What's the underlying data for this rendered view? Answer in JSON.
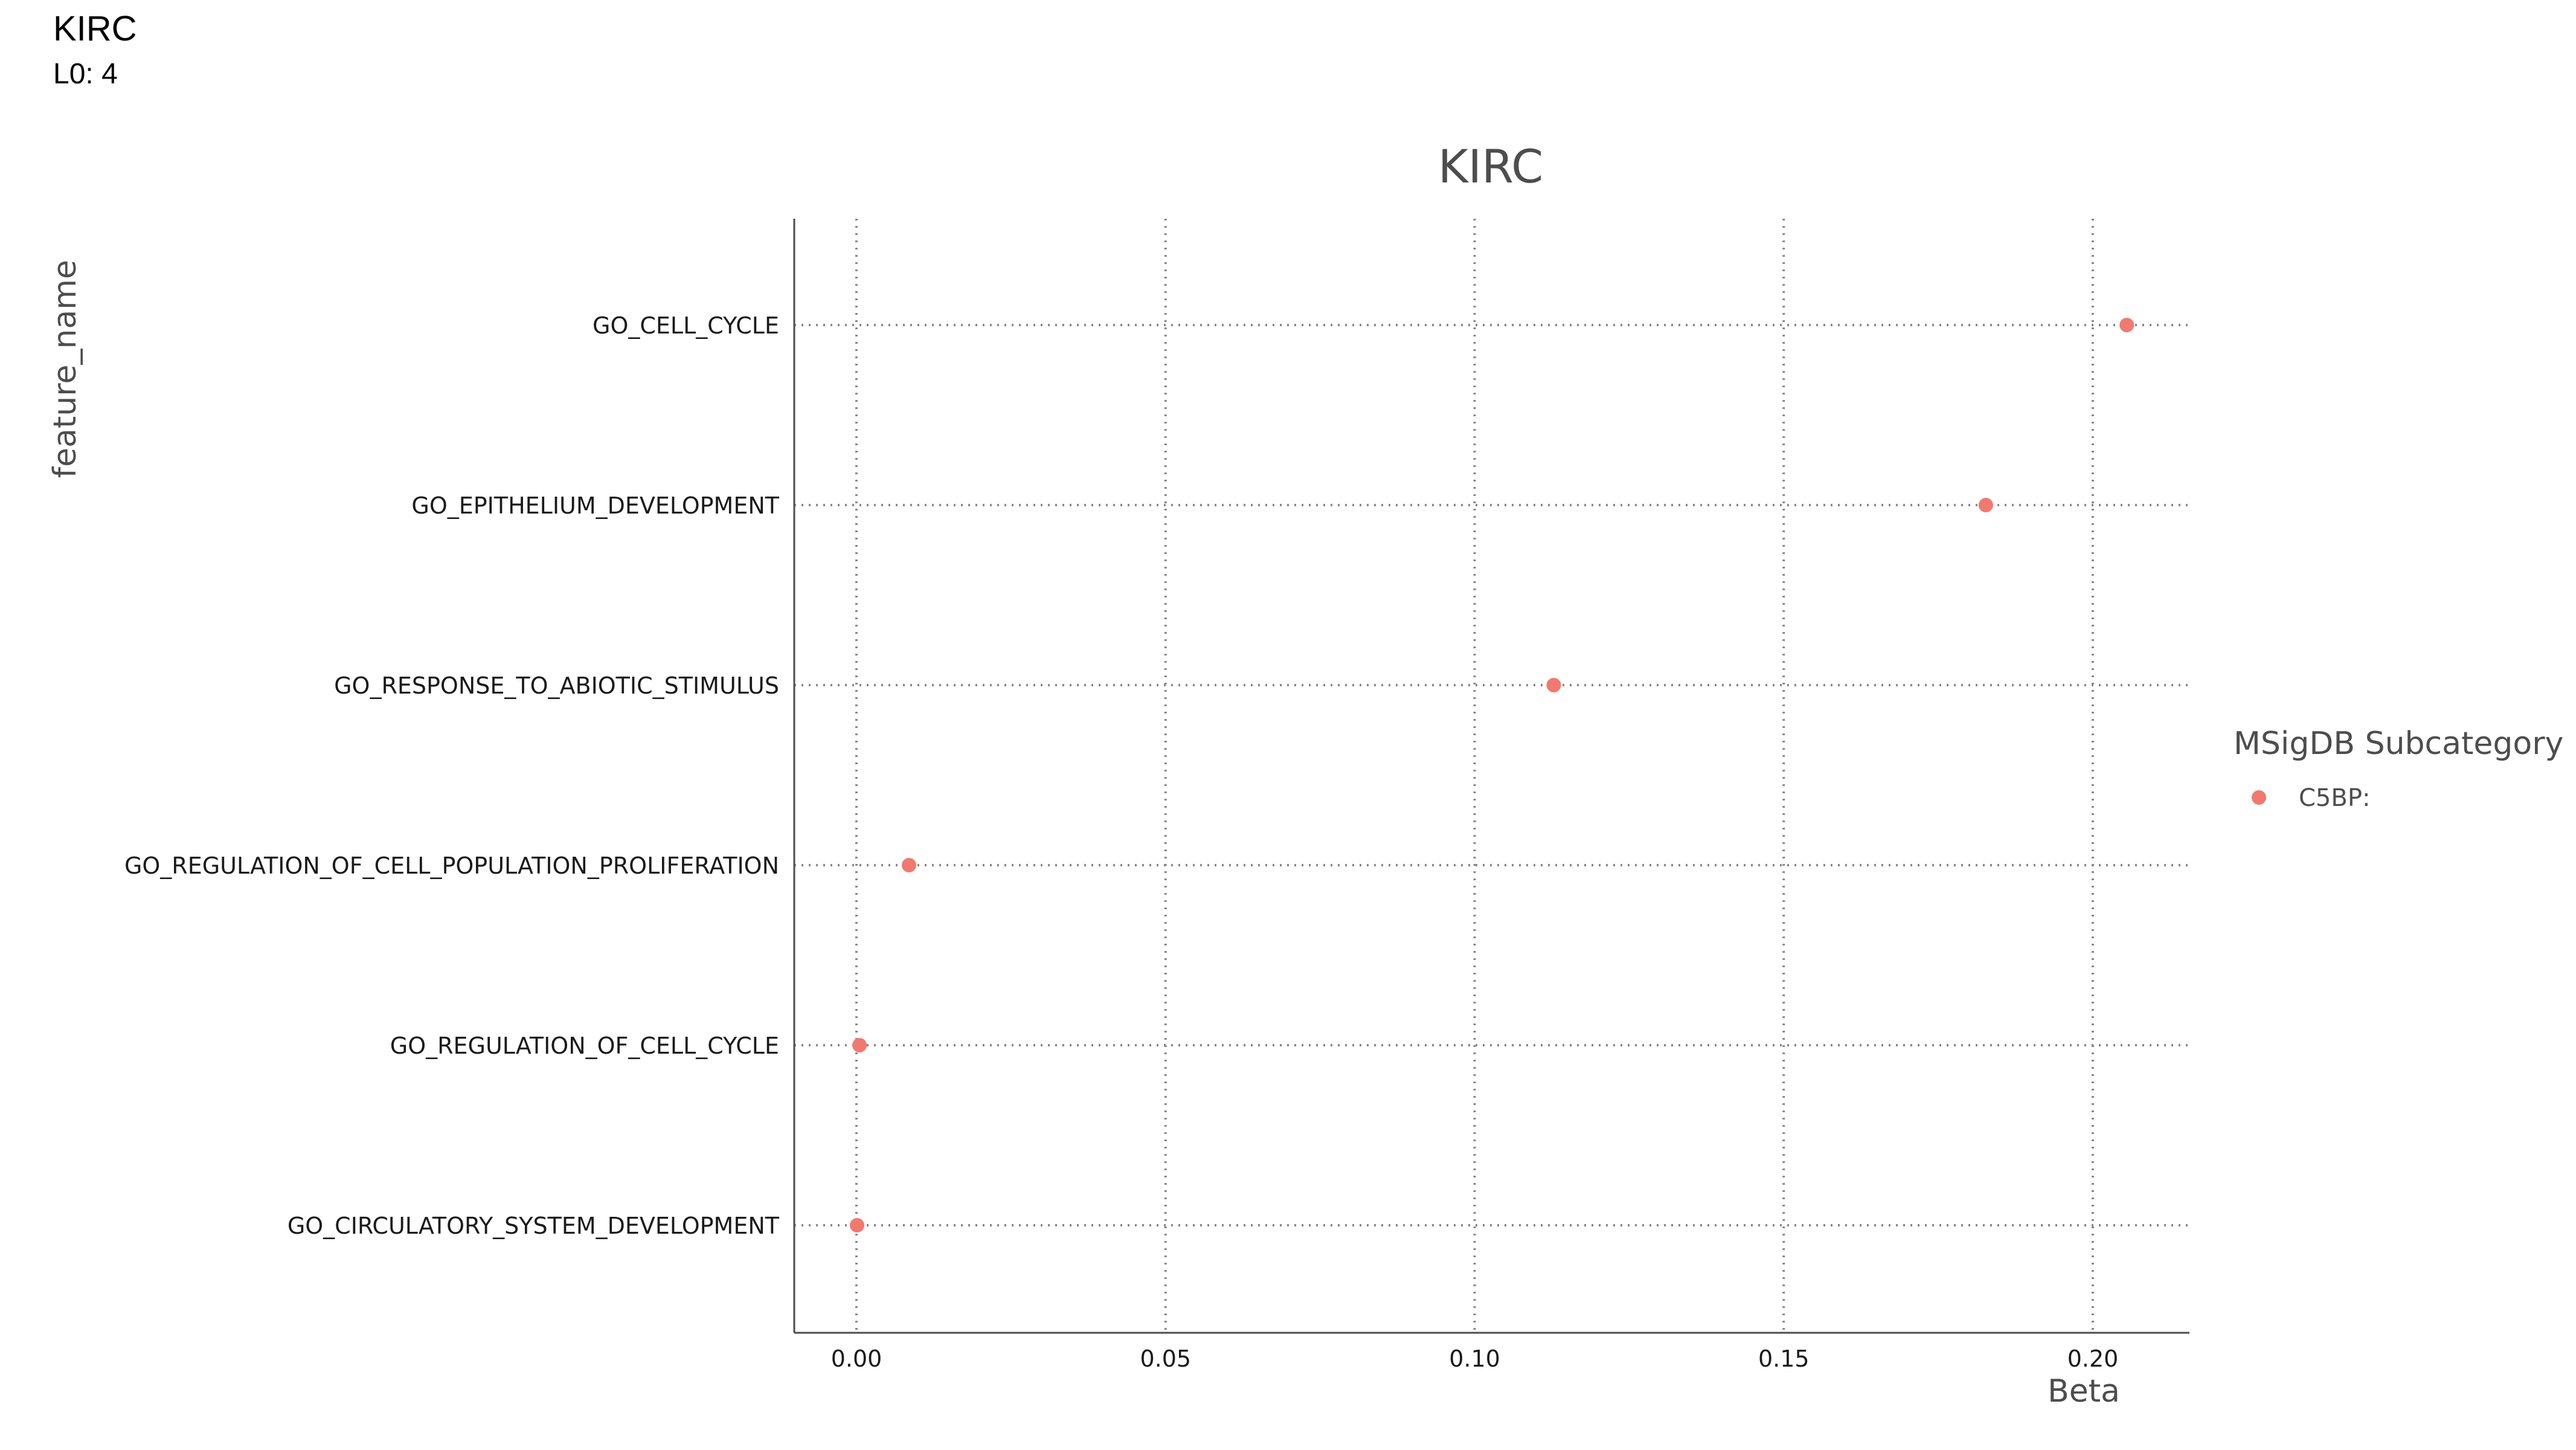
{
  "header": {
    "title": "KIRC",
    "subtitle": "L0: 4"
  },
  "chart_data": {
    "type": "scatter",
    "title": "KIRC",
    "xlabel": "Beta",
    "ylabel": "feature_name",
    "xlim": [
      -0.01,
      0.215
    ],
    "x_ticks": [
      "0.00",
      "0.05",
      "0.10",
      "0.15",
      "0.20"
    ],
    "x_tick_values": [
      0.0,
      0.05,
      0.1,
      0.15,
      0.2
    ],
    "categories": [
      "GO_CELL_CYCLE",
      "GO_EPITHELIUM_DEVELOPMENT",
      "GO_RESPONSE_TO_ABIOTIC_STIMULUS",
      "GO_REGULATION_OF_CELL_POPULATION_PROLIFERATION",
      "GO_REGULATION_OF_CELL_CYCLE",
      "GO_CIRCULATORY_SYSTEM_DEVELOPMENT"
    ],
    "series": [
      {
        "name": "C5BP:",
        "color": "#F07A70",
        "values": [
          0.2055,
          0.1827,
          0.1128,
          0.0085,
          0.0005,
          0.0001
        ]
      }
    ],
    "legend": {
      "title": "MSigDB Subcategory",
      "placement": "right"
    },
    "grid": "dotted"
  }
}
